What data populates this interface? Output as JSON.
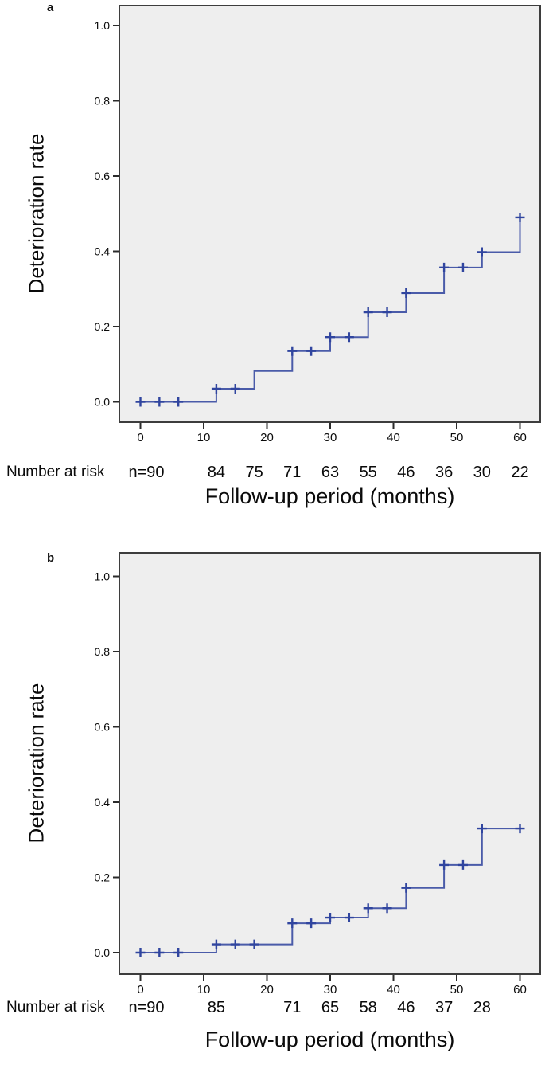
{
  "figure": {
    "background": "#ffffff",
    "panels_count": 2
  },
  "chart_data": [
    {
      "type": "line",
      "subtype": "kaplan-meier-step",
      "panel_label": "a",
      "ylabel": "Deterioration rate",
      "xlabel": "Follow-up period (months)",
      "xticks": [
        "0",
        "10",
        "20",
        "30",
        "40",
        "50",
        "60"
      ],
      "xtick_values": [
        0,
        10,
        20,
        30,
        40,
        50,
        60
      ],
      "yticks": [
        "0.0",
        "0.2",
        "0.4",
        "0.6",
        "0.8",
        "1.0"
      ],
      "ytick_values": [
        0.0,
        0.2,
        0.4,
        0.6,
        0.8,
        1.0
      ],
      "xlim": [
        0,
        63
      ],
      "ylim": [
        0,
        1.05
      ],
      "grid": false,
      "legend": "none",
      "step_points": [
        [
          0,
          0
        ],
        [
          12,
          0.035
        ],
        [
          18,
          0.082
        ],
        [
          24,
          0.135
        ],
        [
          30,
          0.172
        ],
        [
          36,
          0.238
        ],
        [
          42,
          0.289
        ],
        [
          48,
          0.357
        ],
        [
          54,
          0.398
        ],
        [
          60,
          0.49
        ]
      ],
      "censor_marks": [
        [
          0,
          0
        ],
        [
          3,
          0
        ],
        [
          6,
          0
        ],
        [
          12,
          0.035
        ],
        [
          15,
          0.035
        ],
        [
          24,
          0.135
        ],
        [
          27,
          0.135
        ],
        [
          30,
          0.172
        ],
        [
          33,
          0.172
        ],
        [
          36,
          0.238
        ],
        [
          39,
          0.238
        ],
        [
          42,
          0.289
        ],
        [
          48,
          0.357
        ],
        [
          51,
          0.357
        ],
        [
          54,
          0.398
        ],
        [
          60,
          0.49
        ]
      ],
      "number_at_risk": {
        "label": "Number at risk",
        "n_label": "n=90",
        "months": [
          12,
          18,
          24,
          30,
          36,
          42,
          48,
          54,
          60
        ],
        "values": [
          "84",
          "75",
          "71",
          "63",
          "55",
          "46",
          "36",
          "30",
          "22"
        ]
      },
      "line_color": "#4a5ba9",
      "censor_color": "#30459f",
      "plot_bg": "#eeeeee",
      "border_color": "#3d3d3d"
    },
    {
      "type": "line",
      "subtype": "kaplan-meier-step",
      "panel_label": "b",
      "ylabel": "Deterioration rate",
      "xlabel": "Follow-up period (months)",
      "xticks": [
        "0",
        "10",
        "20",
        "30",
        "40",
        "50",
        "60"
      ],
      "xtick_values": [
        0,
        10,
        20,
        30,
        40,
        50,
        60
      ],
      "yticks": [
        "0.0",
        "0.2",
        "0.4",
        "0.6",
        "0.8",
        "1.0"
      ],
      "ytick_values": [
        0.0,
        0.2,
        0.4,
        0.6,
        0.8,
        1.0
      ],
      "xlim": [
        0,
        63
      ],
      "ylim": [
        0,
        1.05
      ],
      "grid": false,
      "legend": "none",
      "step_points": [
        [
          0,
          0
        ],
        [
          12,
          0.022
        ],
        [
          24,
          0.078
        ],
        [
          30,
          0.093
        ],
        [
          36,
          0.118
        ],
        [
          42,
          0.172
        ],
        [
          48,
          0.233
        ],
        [
          54,
          0.33
        ],
        [
          60,
          0.33
        ]
      ],
      "censor_marks": [
        [
          0,
          0
        ],
        [
          3,
          0
        ],
        [
          6,
          0
        ],
        [
          12,
          0.022
        ],
        [
          15,
          0.022
        ],
        [
          18,
          0.022
        ],
        [
          24,
          0.078
        ],
        [
          27,
          0.078
        ],
        [
          30,
          0.093
        ],
        [
          33,
          0.093
        ],
        [
          36,
          0.118
        ],
        [
          39,
          0.118
        ],
        [
          42,
          0.172
        ],
        [
          48,
          0.233
        ],
        [
          51,
          0.233
        ],
        [
          54,
          0.33
        ],
        [
          60,
          0.33
        ]
      ],
      "number_at_risk": {
        "label": "Number at risk",
        "n_label": "n=90",
        "months": [
          12,
          24,
          30,
          36,
          42,
          48,
          54
        ],
        "values": [
          "85",
          "71",
          "65",
          "58",
          "46",
          "37",
          "28"
        ]
      },
      "line_color": "#4a5ba9",
      "censor_color": "#30459f",
      "plot_bg": "#eeeeee",
      "border_color": "#3d3d3d"
    }
  ]
}
